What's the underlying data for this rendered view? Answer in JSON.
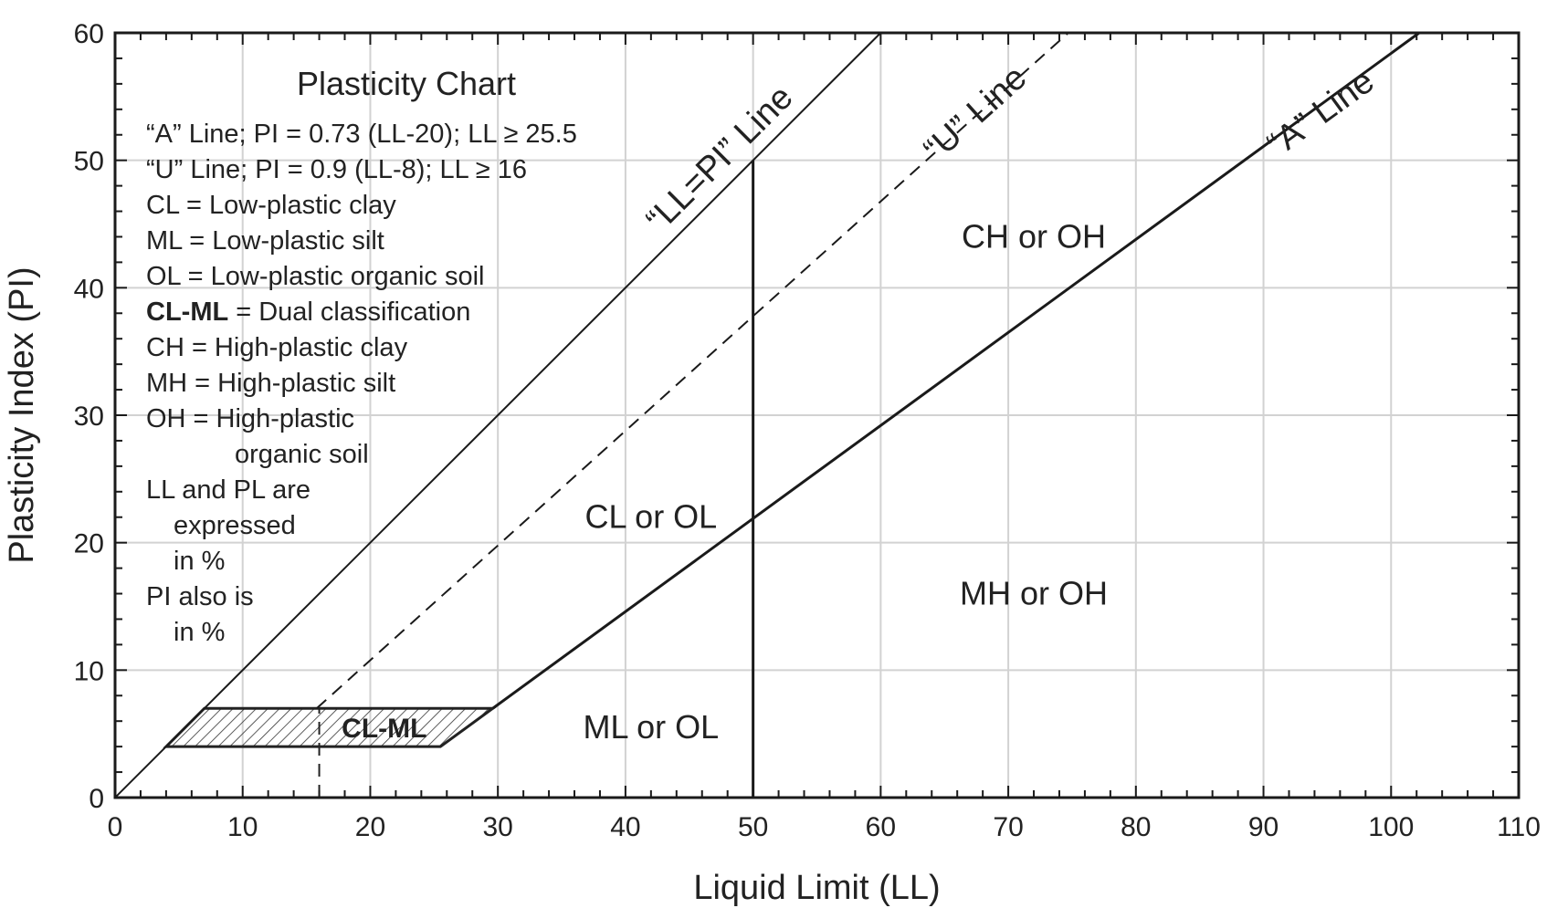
{
  "chart_data": {
    "type": "line",
    "title": "Plasticity Chart",
    "xlabel": "Liquid Limit (LL)",
    "ylabel": "Plasticity Index (PI)",
    "xlim": [
      0,
      110
    ],
    "ylim": [
      0,
      60
    ],
    "x_ticks": [
      0,
      10,
      20,
      30,
      40,
      50,
      60,
      70,
      80,
      90,
      100,
      110
    ],
    "y_ticks": [
      0,
      10,
      20,
      30,
      40,
      50,
      60
    ],
    "grid": true,
    "legend_text": [
      {
        "text": "“A” Line; PI = 0.73 (LL-20); LL ≥ 25.5"
      },
      {
        "text": "“U” Line; PI = 0.9 (LL-8); LL ≥ 16"
      },
      {
        "text": "CL = Low-plastic clay"
      },
      {
        "text": "ML = Low-plastic silt"
      },
      {
        "text": "OL = Low-plastic organic soil"
      },
      {
        "bold": "CL-ML",
        "text": " = Dual classification"
      },
      {
        "text": "CH = High-plastic clay"
      },
      {
        "text": "MH = High-plastic silt"
      },
      {
        "text": "OH = High-plastic"
      },
      {
        "text": "organic soil",
        "indent": true
      },
      {
        "text": "LL and PL are"
      },
      {
        "text": "expressed",
        "indent_small": true
      },
      {
        "text": "in %",
        "indent_small": true
      },
      {
        "text": "PI also is"
      },
      {
        "text": "in %",
        "indent_small": true
      }
    ],
    "series": [
      {
        "name": "“LL=PI” Line",
        "style": "solid-thin",
        "x": [
          0,
          60
        ],
        "y": [
          0,
          60
        ]
      },
      {
        "name": "“U” Line",
        "style": "dashed",
        "x": [
          15.8,
          74.7
        ],
        "y": [
          7,
          60
        ]
      },
      {
        "name": "“A” Line",
        "style": "solid-thick",
        "x": [
          29.6,
          102.2
        ],
        "y": [
          7,
          60
        ]
      },
      {
        "name": "LL = 50",
        "style": "solid-thick",
        "x": [
          50,
          50
        ],
        "y": [
          0,
          50
        ]
      }
    ],
    "cl_ml_zone": {
      "label": "CL-ML",
      "x": [
        4,
        7,
        29.6,
        25.5
      ],
      "y": [
        4,
        7,
        7,
        4
      ],
      "u_line_stub": {
        "x": [
          16,
          16
        ],
        "y": [
          0,
          7
        ]
      }
    },
    "region_labels": [
      {
        "text": "CH or OH",
        "x": 72,
        "y": 44
      },
      {
        "text": "CL or OL",
        "x": 42,
        "y": 22
      },
      {
        "text": "MH or OH",
        "x": 72,
        "y": 16
      },
      {
        "text": "ML or OL",
        "x": 42,
        "y": 5.5
      }
    ]
  }
}
